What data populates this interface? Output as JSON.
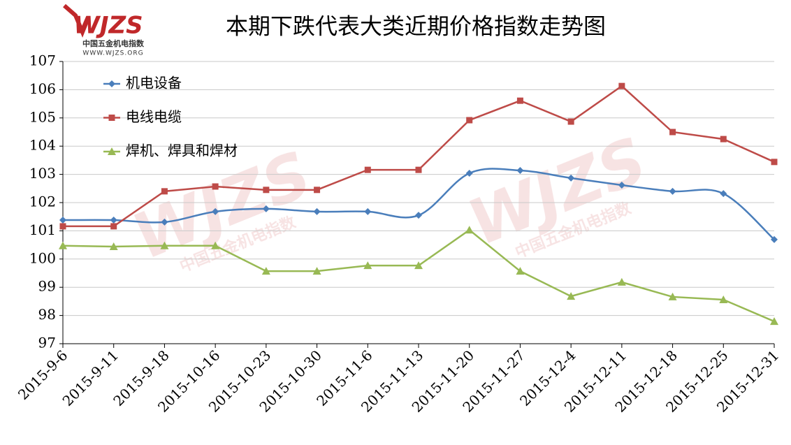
{
  "chart_data": {
    "type": "line",
    "title": "本期下跌代表大类近期价格指数走势图",
    "logo": {
      "mark": "WJZS",
      "name": "中国五金机电指数",
      "url": "WWW.WJZS.ORG"
    },
    "categories": [
      "2015-9-6",
      "2015-9-11",
      "2015-9-18",
      "2015-10-16",
      "2015-10-23",
      "2015-10-30",
      "2015-11-6",
      "2015-11-13",
      "2015-11-20",
      "2015-11-27",
      "2015-12-4",
      "2015-12-11",
      "2015-12-18",
      "2015-12-25",
      "2015-12-31"
    ],
    "series": [
      {
        "name": "机电设备",
        "color": "#4a7ebb",
        "marker": "diamond",
        "smooth": true,
        "values": [
          101.38,
          101.38,
          101.31,
          101.68,
          101.78,
          101.68,
          101.68,
          101.55,
          103.04,
          103.14,
          102.87,
          102.62,
          102.4,
          102.32,
          100.69
        ]
      },
      {
        "name": "电线电缆",
        "color": "#be4b48",
        "marker": "square",
        "smooth": false,
        "values": [
          101.16,
          101.16,
          102.4,
          102.57,
          102.45,
          102.45,
          103.16,
          103.16,
          104.92,
          105.61,
          104.87,
          106.13,
          104.5,
          104.25,
          103.44
        ]
      },
      {
        "name": "焊机、焊具和焊材",
        "color": "#98b954",
        "marker": "triangle",
        "smooth": false,
        "values": [
          100.47,
          100.44,
          100.47,
          100.47,
          99.57,
          99.57,
          99.77,
          99.77,
          101.03,
          99.57,
          98.68,
          99.18,
          98.66,
          98.56,
          97.79
        ]
      }
    ],
    "ylim": [
      97,
      107
    ],
    "yticks": [
      97,
      98,
      99,
      100,
      101,
      102,
      103,
      104,
      105,
      106,
      107
    ],
    "grid": true,
    "legend": "upper-left"
  }
}
